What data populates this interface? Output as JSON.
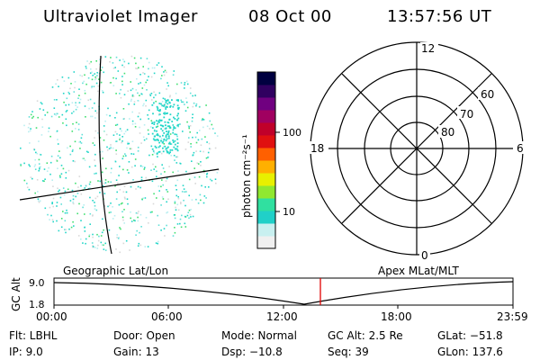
{
  "header": {
    "instrument": "Ultraviolet Imager",
    "date": "08 Oct 00",
    "time": "13:57:56 UT"
  },
  "colorbar": {
    "unit_label": "photon cm⁻²s⁻¹",
    "ticks": [
      "100",
      "10"
    ],
    "colors": [
      "#f0f0f0",
      "#c8f0f0",
      "#20d0c8",
      "#30e0a0",
      "#90e830",
      "#e8f000",
      "#ffb000",
      "#ff6000",
      "#e01010",
      "#c0002a",
      "#a00060",
      "#700080",
      "#300060",
      "#000040"
    ]
  },
  "polar_plot": {
    "mlt_labels": {
      "top": "12",
      "bottom": "0",
      "left": "18",
      "right": "6"
    },
    "mlat_labels": [
      "60",
      "70",
      "80"
    ]
  },
  "altitude_plot": {
    "left_caption": "Geographic Lat/Lon",
    "right_caption": "Apex MLat/MLT",
    "y_axis_label": "GC Alt",
    "y_ticks": [
      "9.0",
      "1.8"
    ],
    "x_ticks": [
      "00:00",
      "06:00",
      "12:00",
      "18:00",
      "23:59"
    ],
    "marker_time": "13:57:56",
    "marker_color": "#e00000"
  },
  "info": {
    "filter": "Flt: LBHL",
    "ip": "IP: 9.0",
    "door": "Door: Open",
    "gain": "Gain: 13",
    "mode": "Mode: Normal",
    "dsp": "Dsp: −10.8",
    "gc_alt": "GC Alt: 2.5 Re",
    "seq": "Seq: 39",
    "glat": "GLat: −51.8",
    "glon": "GLon: 137.6"
  }
}
